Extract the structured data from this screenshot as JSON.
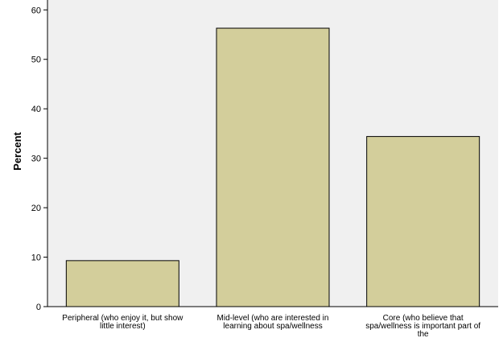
{
  "chart_data": {
    "type": "bar",
    "title": "",
    "xlabel": "",
    "ylabel": "Percent",
    "categories": [
      [
        "Peripheral (who enjoy it, but show",
        "little interest)"
      ],
      [
        "Mid-level (who are interested in",
        "learning about spa/wellness"
      ],
      [
        "Core (who believe that",
        "spa/wellness is important part of",
        "the"
      ]
    ],
    "values": [
      9.3,
      56.3,
      34.4
    ],
    "ylim": [
      0,
      62
    ],
    "yticks": [
      0,
      10,
      20,
      30,
      40,
      50,
      60
    ],
    "grid": false,
    "colors": {
      "bar_fill": "#D3CE9B",
      "bar_stroke": "#000000",
      "plot_background": "#F0F0F0",
      "page_background": "#FFFFFF"
    }
  }
}
